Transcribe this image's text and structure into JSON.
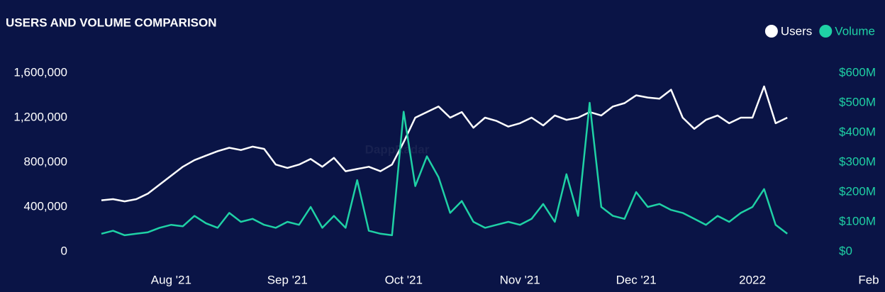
{
  "chart_data": {
    "type": "line",
    "title": "USERS AND VOLUME COMPARISON",
    "watermark": "DappRadar",
    "categories": [
      null,
      null,
      null,
      null,
      null,
      null,
      "Aug '21",
      null,
      null,
      null,
      null,
      null,
      null,
      null,
      null,
      null,
      "Sep '21",
      null,
      null,
      null,
      null,
      null,
      null,
      null,
      null,
      null,
      "Oct '21",
      null,
      null,
      null,
      null,
      null,
      null,
      null,
      null,
      null,
      "Nov '21",
      null,
      null,
      null,
      null,
      null,
      null,
      null,
      null,
      null,
      "Dec '21",
      null,
      null,
      null,
      null,
      null,
      null,
      null,
      null,
      null,
      "2022",
      null,
      null,
      null,
      null,
      null,
      null,
      null,
      null,
      null,
      "Feb"
    ],
    "series": [
      {
        "name": "Users",
        "color": "#ffffff",
        "values": [
          460000,
          470000,
          450000,
          470000,
          520000,
          600000,
          680000,
          760000,
          820000,
          860000,
          900000,
          930000,
          910000,
          940000,
          920000,
          780000,
          750000,
          780000,
          830000,
          760000,
          840000,
          720000,
          740000,
          760000,
          720000,
          780000,
          980000,
          1200000,
          1250000,
          1300000,
          1200000,
          1250000,
          1110000,
          1200000,
          1170000,
          1120000,
          1150000,
          1200000,
          1130000,
          1220000,
          1180000,
          1200000,
          1250000,
          1220000,
          1300000,
          1330000,
          1400000,
          1380000,
          1370000,
          1450000,
          1200000,
          1100000,
          1180000,
          1220000,
          1150000,
          1200000,
          1200000,
          1480000,
          1150000,
          1200000,
          null,
          null,
          null,
          null,
          null,
          null,
          null
        ]
      },
      {
        "name": "Volume",
        "color": "#1fd1a5",
        "axis": "y2",
        "values": [
          60,
          70,
          55,
          60,
          65,
          80,
          90,
          85,
          120,
          95,
          80,
          130,
          100,
          110,
          90,
          80,
          100,
          90,
          150,
          80,
          120,
          80,
          240,
          70,
          60,
          55,
          470,
          220,
          320,
          250,
          130,
          170,
          100,
          80,
          90,
          100,
          90,
          110,
          160,
          100,
          260,
          120,
          500,
          150,
          120,
          110,
          200,
          150,
          160,
          140,
          130,
          110,
          90,
          120,
          100,
          130,
          150,
          210,
          90,
          60,
          null,
          null,
          null,
          null,
          null,
          null,
          null
        ]
      }
    ],
    "ylim": [
      0,
      1600000
    ],
    "yticks": [
      0,
      {
        "value": 400000,
        "label": "400,000"
      },
      {
        "value": 800000,
        "label": "800,000"
      },
      {
        "value": 1200000,
        "label": "1,200,000"
      },
      {
        "value": 1600000,
        "label": "1,600,000"
      }
    ],
    "y2lim": [
      0,
      600
    ],
    "y2ticks": [
      {
        "value": 0,
        "label": "$0"
      },
      {
        "value": 100,
        "label": "$100M"
      },
      {
        "value": 200,
        "label": "$200M"
      },
      {
        "value": 300,
        "label": "$300M"
      },
      {
        "value": 400,
        "label": "$400M"
      },
      {
        "value": 500,
        "label": "$500M"
      },
      {
        "value": 600,
        "label": "$600M"
      }
    ],
    "legend": "top-right"
  }
}
